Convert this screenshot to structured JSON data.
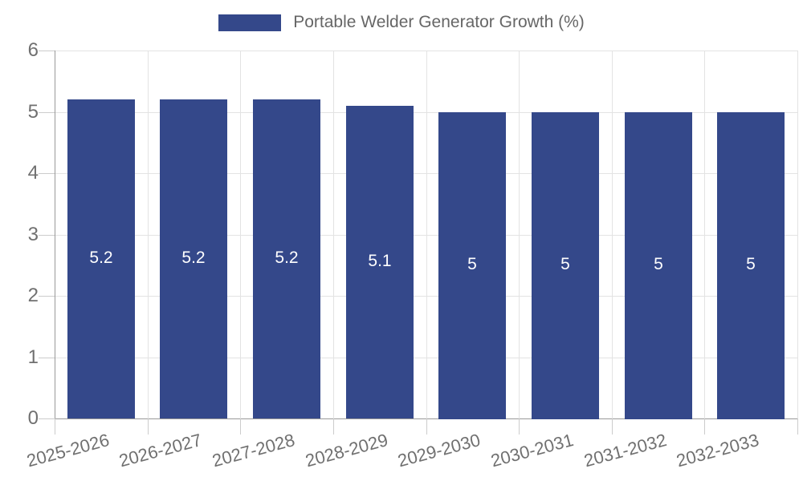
{
  "chart_data": {
    "type": "bar",
    "title": "",
    "legend_label": "Portable Welder Generator Growth (%)",
    "legend_position": "top",
    "categories": [
      "2025-2026",
      "2026-2027",
      "2027-2028",
      "2028-2029",
      "2029-2030",
      "2030-2031",
      "2031-2032",
      "2032-2033"
    ],
    "values": [
      5.2,
      5.2,
      5.2,
      5.1,
      5,
      5,
      5,
      5
    ],
    "value_labels": [
      "5.2",
      "5.2",
      "5.2",
      "5.1",
      "5",
      "5",
      "5",
      "5"
    ],
    "xlabel": "",
    "ylabel": "",
    "ylim": [
      0,
      6
    ],
    "yticks": [
      0,
      1,
      2,
      3,
      4,
      5,
      6
    ],
    "grid": "horizontal-and-vertical",
    "bar_color": "#34488a",
    "bar_label_color": "#ffffff"
  }
}
